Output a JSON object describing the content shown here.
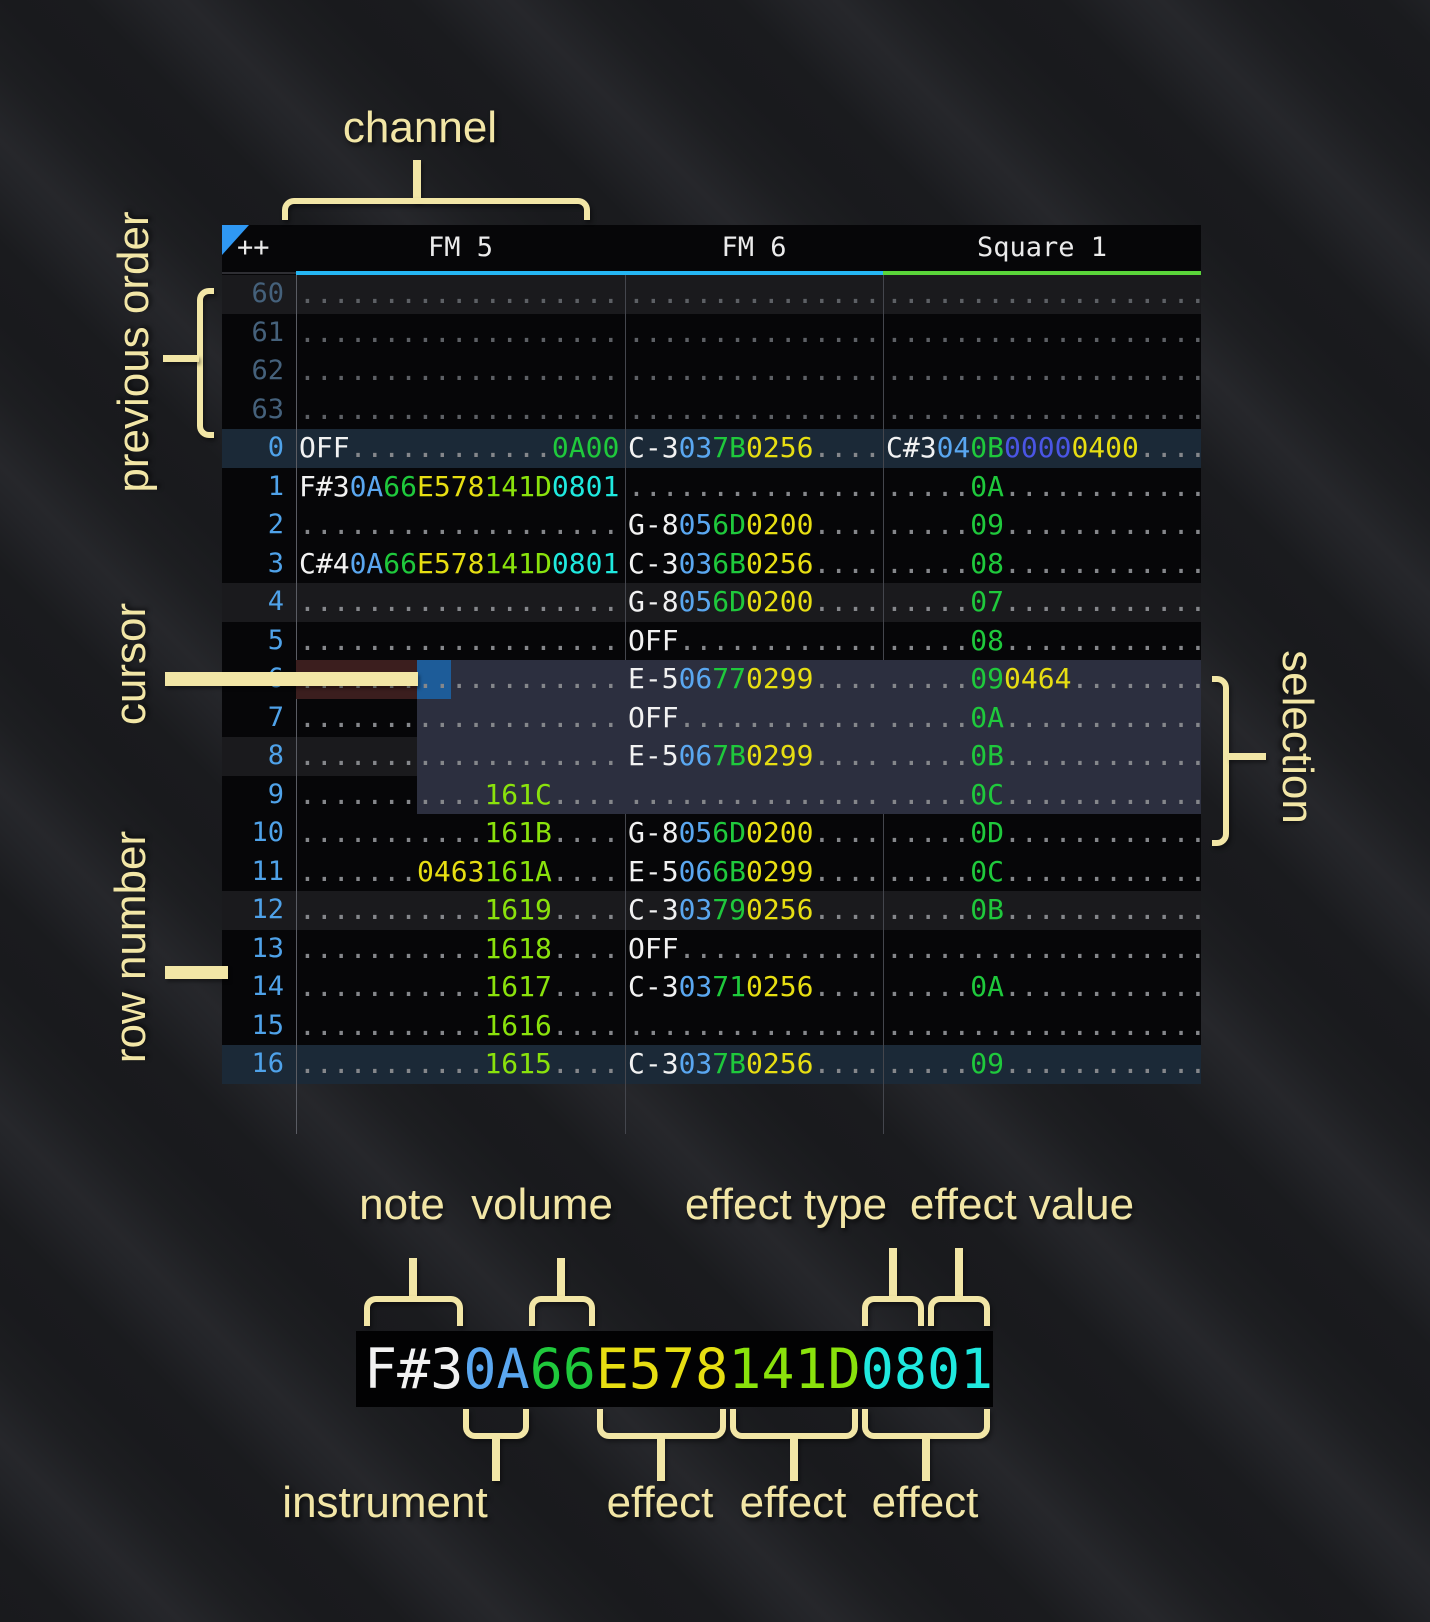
{
  "colors": {
    "note": "#f2f2f2",
    "instrument": "#5aa7f0",
    "volume": "#1fc93c",
    "effect_yellow": "#e7de12",
    "effect_lime": "#8ae20c",
    "effect_cyan": "#1fe9df",
    "effect_primary": "#4a55e4",
    "dots": "#85878b",
    "dots_dim": "#5d6065",
    "row_number": "#4fa2e9",
    "row_number_dim": "#45617b",
    "underline_fm": "#25b6f3",
    "underline_square": "#5ad53a",
    "selection_bg": "#2c2f3f",
    "cursor_bg": "#1d5c99",
    "cursor_row_bg": "#3b1e1e",
    "highlight_major_bg": "#1b2937",
    "highlight_minor_bg": "#1a1a1d",
    "order_triangle": "#2f98f3",
    "annotation": "#f2e6a6"
  },
  "annotations": {
    "channel": "channel",
    "previous_order": "previous order",
    "cursor": "cursor",
    "row_number": "row number",
    "selection": "selection"
  },
  "breakdown": {
    "top_labels": {
      "note": "note",
      "volume": "volume",
      "effect_type": "effect type",
      "effect_value": "effect value"
    },
    "bottom_labels": {
      "instrument": "instrument",
      "effect1": "effect",
      "effect2": "effect",
      "effect3": "effect"
    },
    "cell_segments": [
      [
        "F#3",
        "n"
      ],
      [
        "0A",
        "i"
      ],
      [
        "66",
        "v"
      ],
      [
        "E578",
        "y"
      ],
      [
        "141D",
        "l"
      ],
      [
        "0801",
        "c"
      ]
    ]
  },
  "tracker": {
    "corner_label": "++",
    "channels": [
      {
        "name": "FM 5",
        "underline": "underline_fm"
      },
      {
        "name": "FM 6",
        "underline": "underline_fm"
      },
      {
        "name": "Square 1",
        "underline": "underline_square"
      }
    ],
    "rows": [
      {
        "num": "60",
        "dim": true,
        "hl": "minor",
        "fm5": [
          [
            "...................",
            "d"
          ]
        ],
        "fm6": [
          [
            "...............",
            "d"
          ]
        ],
        "sq": [
          [
            "...................",
            "d"
          ]
        ]
      },
      {
        "num": "61",
        "dim": true,
        "hl": "",
        "fm5": [
          [
            "...................",
            "d"
          ]
        ],
        "fm6": [
          [
            "...............",
            "d"
          ]
        ],
        "sq": [
          [
            "...................",
            "d"
          ]
        ]
      },
      {
        "num": "62",
        "dim": true,
        "hl": "",
        "fm5": [
          [
            "...................",
            "d"
          ]
        ],
        "fm6": [
          [
            "...............",
            "d"
          ]
        ],
        "sq": [
          [
            "...................",
            "d"
          ]
        ]
      },
      {
        "num": "63",
        "dim": true,
        "hl": "",
        "fm5": [
          [
            "...................",
            "d"
          ]
        ],
        "fm6": [
          [
            "...............",
            "d"
          ]
        ],
        "sq": [
          [
            "...................",
            "d"
          ]
        ]
      },
      {
        "num": "0",
        "hl": "major",
        "fm5": [
          [
            "OFF",
            "n"
          ],
          [
            "............",
            "d"
          ],
          [
            "0A00",
            "v"
          ]
        ],
        "fm6": [
          [
            "C-3",
            "n"
          ],
          [
            "03",
            "i"
          ],
          [
            "7B",
            "v"
          ],
          [
            "0256",
            "y"
          ],
          [
            "....",
            "d"
          ]
        ],
        "sq": [
          [
            "C#3",
            "n"
          ],
          [
            "04",
            "i"
          ],
          [
            "0B",
            "v"
          ],
          [
            "0000",
            "p"
          ],
          [
            "0400",
            "y"
          ],
          [
            "....",
            "d"
          ]
        ]
      },
      {
        "num": "1",
        "hl": "",
        "fm5": [
          [
            "F#3",
            "n"
          ],
          [
            "0A",
            "i"
          ],
          [
            "66",
            "v"
          ],
          [
            "E578",
            "y"
          ],
          [
            "141D",
            "l"
          ],
          [
            "0801",
            "c"
          ]
        ],
        "fm6": [
          [
            "...............",
            "d"
          ]
        ],
        "sq": [
          [
            ".....",
            "d"
          ],
          [
            "0A",
            "v"
          ],
          [
            "............",
            "d"
          ]
        ]
      },
      {
        "num": "2",
        "hl": "",
        "fm5": [
          [
            "...................",
            "d"
          ]
        ],
        "fm6": [
          [
            "G-8",
            "n"
          ],
          [
            "05",
            "i"
          ],
          [
            "6D",
            "v"
          ],
          [
            "0200",
            "y"
          ],
          [
            "....",
            "d"
          ]
        ],
        "sq": [
          [
            ".....",
            "d"
          ],
          [
            "09",
            "v"
          ],
          [
            "............",
            "d"
          ]
        ]
      },
      {
        "num": "3",
        "hl": "",
        "fm5": [
          [
            "C#4",
            "n"
          ],
          [
            "0A",
            "i"
          ],
          [
            "66",
            "v"
          ],
          [
            "E578",
            "y"
          ],
          [
            "141D",
            "l"
          ],
          [
            "0801",
            "c"
          ]
        ],
        "fm6": [
          [
            "C-3",
            "n"
          ],
          [
            "03",
            "i"
          ],
          [
            "6B",
            "v"
          ],
          [
            "0256",
            "y"
          ],
          [
            "....",
            "d"
          ]
        ],
        "sq": [
          [
            ".....",
            "d"
          ],
          [
            "08",
            "v"
          ],
          [
            "............",
            "d"
          ]
        ]
      },
      {
        "num": "4",
        "hl": "minor",
        "fm5": [
          [
            "...................",
            "d"
          ]
        ],
        "fm6": [
          [
            "G-8",
            "n"
          ],
          [
            "05",
            "i"
          ],
          [
            "6D",
            "v"
          ],
          [
            "0200",
            "y"
          ],
          [
            "....",
            "d"
          ]
        ],
        "sq": [
          [
            ".....",
            "d"
          ],
          [
            "07",
            "v"
          ],
          [
            "............",
            "d"
          ]
        ]
      },
      {
        "num": "5",
        "hl": "",
        "fm5": [
          [
            "...................",
            "d"
          ]
        ],
        "fm6": [
          [
            "OFF",
            "n"
          ],
          [
            "............",
            "d"
          ]
        ],
        "sq": [
          [
            ".....",
            "d"
          ],
          [
            "08",
            "v"
          ],
          [
            "............",
            "d"
          ]
        ]
      },
      {
        "num": "6",
        "hl": "",
        "cursor": true,
        "fm5": [
          [
            "...................",
            "d"
          ]
        ],
        "fm6": [
          [
            "E-5",
            "n"
          ],
          [
            "06",
            "i"
          ],
          [
            "77",
            "v"
          ],
          [
            "0299",
            "y"
          ],
          [
            "....",
            "d"
          ]
        ],
        "sq": [
          [
            ".....",
            "d"
          ],
          [
            "09",
            "v"
          ],
          [
            "0464",
            "y"
          ],
          [
            "........",
            "d"
          ]
        ]
      },
      {
        "num": "7",
        "hl": "",
        "fm5": [
          [
            "...................",
            "d"
          ]
        ],
        "fm6": [
          [
            "OFF",
            "n"
          ],
          [
            "............",
            "d"
          ]
        ],
        "sq": [
          [
            ".....",
            "d"
          ],
          [
            "0A",
            "v"
          ],
          [
            "............",
            "d"
          ]
        ]
      },
      {
        "num": "8",
        "hl": "minor",
        "fm5": [
          [
            "...................",
            "d"
          ]
        ],
        "fm6": [
          [
            "E-5",
            "n"
          ],
          [
            "06",
            "i"
          ],
          [
            "7B",
            "v"
          ],
          [
            "0299",
            "y"
          ],
          [
            "....",
            "d"
          ]
        ],
        "sq": [
          [
            ".....",
            "d"
          ],
          [
            "0B",
            "v"
          ],
          [
            "............",
            "d"
          ]
        ]
      },
      {
        "num": "9",
        "hl": "",
        "fm5": [
          [
            "...........",
            "d"
          ],
          [
            "161C",
            "l"
          ],
          [
            "....",
            "d"
          ]
        ],
        "fm6": [
          [
            "...............",
            "d"
          ]
        ],
        "sq": [
          [
            ".....",
            "d"
          ],
          [
            "0C",
            "v"
          ],
          [
            "............",
            "d"
          ]
        ]
      },
      {
        "num": "10",
        "hl": "",
        "fm5": [
          [
            "...........",
            "d"
          ],
          [
            "161B",
            "l"
          ],
          [
            "....",
            "d"
          ]
        ],
        "fm6": [
          [
            "G-8",
            "n"
          ],
          [
            "05",
            "i"
          ],
          [
            "6D",
            "v"
          ],
          [
            "0200",
            "y"
          ],
          [
            "....",
            "d"
          ]
        ],
        "sq": [
          [
            ".....",
            "d"
          ],
          [
            "0D",
            "v"
          ],
          [
            "............",
            "d"
          ]
        ]
      },
      {
        "num": "11",
        "hl": "",
        "fm5": [
          [
            ".......",
            "d"
          ],
          [
            "0463",
            "y"
          ],
          [
            "161A",
            "l"
          ],
          [
            "....",
            "d"
          ]
        ],
        "fm6": [
          [
            "E-5",
            "n"
          ],
          [
            "06",
            "i"
          ],
          [
            "6B",
            "v"
          ],
          [
            "0299",
            "y"
          ],
          [
            "....",
            "d"
          ]
        ],
        "sq": [
          [
            ".....",
            "d"
          ],
          [
            "0C",
            "v"
          ],
          [
            "............",
            "d"
          ]
        ]
      },
      {
        "num": "12",
        "hl": "minor",
        "fm5": [
          [
            "...........",
            "d"
          ],
          [
            "1619",
            "l"
          ],
          [
            "....",
            "d"
          ]
        ],
        "fm6": [
          [
            "C-3",
            "n"
          ],
          [
            "03",
            "i"
          ],
          [
            "79",
            "v"
          ],
          [
            "0256",
            "y"
          ],
          [
            "....",
            "d"
          ]
        ],
        "sq": [
          [
            ".....",
            "d"
          ],
          [
            "0B",
            "v"
          ],
          [
            "............",
            "d"
          ]
        ]
      },
      {
        "num": "13",
        "hl": "",
        "fm5": [
          [
            "...........",
            "d"
          ],
          [
            "1618",
            "l"
          ],
          [
            "....",
            "d"
          ]
        ],
        "fm6": [
          [
            "OFF",
            "n"
          ],
          [
            "............",
            "d"
          ]
        ],
        "sq": [
          [
            "...................",
            "d"
          ]
        ]
      },
      {
        "num": "14",
        "hl": "",
        "fm5": [
          [
            "...........",
            "d"
          ],
          [
            "1617",
            "l"
          ],
          [
            "....",
            "d"
          ]
        ],
        "fm6": [
          [
            "C-3",
            "n"
          ],
          [
            "03",
            "i"
          ],
          [
            "71",
            "v"
          ],
          [
            "0256",
            "y"
          ],
          [
            "....",
            "d"
          ]
        ],
        "sq": [
          [
            ".....",
            "d"
          ],
          [
            "0A",
            "v"
          ],
          [
            "............",
            "d"
          ]
        ]
      },
      {
        "num": "15",
        "hl": "",
        "fm5": [
          [
            "...........",
            "d"
          ],
          [
            "1616",
            "l"
          ],
          [
            "....",
            "d"
          ]
        ],
        "fm6": [
          [
            "...............",
            "d"
          ]
        ],
        "sq": [
          [
            "...................",
            "d"
          ]
        ]
      },
      {
        "num": "16",
        "hl": "major",
        "fm5": [
          [
            "...........",
            "d"
          ],
          [
            "1615",
            "l"
          ],
          [
            "....",
            "d"
          ]
        ],
        "fm6": [
          [
            "C-3",
            "n"
          ],
          [
            "03",
            "i"
          ],
          [
            "7B",
            "v"
          ],
          [
            "0256",
            "y"
          ],
          [
            "....",
            "d"
          ]
        ],
        "sq": [
          [
            ".....",
            "d"
          ],
          [
            "09",
            "v"
          ],
          [
            "............",
            "d"
          ]
        ]
      }
    ]
  }
}
